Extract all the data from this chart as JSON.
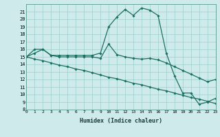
{
  "xlabel": "Humidex (Indice chaleur)",
  "bg_color": "#ceeaea",
  "grid_color": "#9ecece",
  "line_color": "#1a7060",
  "line1_x": [
    0,
    1,
    2,
    3,
    4,
    5,
    6,
    7,
    8,
    9,
    10,
    11,
    12,
    13,
    14,
    15,
    16,
    17,
    18,
    19,
    20,
    21,
    22,
    23
  ],
  "line1_y": [
    15,
    16,
    16,
    15.2,
    15.2,
    15.2,
    15.2,
    15.2,
    15.2,
    15.5,
    19.0,
    20.3,
    21.3,
    20.5,
    21.5,
    21.2,
    20.5,
    15.5,
    12.5,
    10.2,
    10.2,
    8.7,
    9.0,
    9.5
  ],
  "line2_x": [
    0,
    1,
    2,
    3,
    4,
    5,
    6,
    7,
    8,
    9,
    10,
    11,
    12,
    13,
    14,
    15,
    16,
    17,
    18,
    19,
    20,
    21,
    22,
    23
  ],
  "line2_y": [
    15.0,
    15.5,
    16.0,
    15.2,
    15.0,
    15.0,
    15.0,
    15.0,
    15.0,
    14.8,
    16.7,
    15.3,
    15.0,
    14.8,
    14.7,
    14.8,
    14.6,
    14.2,
    13.7,
    13.2,
    12.7,
    12.2,
    11.7,
    12.0
  ],
  "line3_x": [
    0,
    1,
    2,
    3,
    4,
    5,
    6,
    7,
    8,
    9,
    10,
    11,
    12,
    13,
    14,
    15,
    16,
    17,
    18,
    19,
    20,
    21,
    22,
    23
  ],
  "line3_y": [
    15.0,
    14.7,
    14.5,
    14.2,
    13.9,
    13.7,
    13.4,
    13.2,
    12.9,
    12.6,
    12.3,
    12.1,
    11.8,
    11.5,
    11.3,
    11.0,
    10.7,
    10.5,
    10.2,
    9.9,
    9.6,
    9.4,
    9.1,
    8.8
  ],
  "xlim": [
    0,
    23
  ],
  "ylim": [
    8,
    22
  ],
  "yticks": [
    8,
    9,
    10,
    11,
    12,
    13,
    14,
    15,
    16,
    17,
    18,
    19,
    20,
    21
  ],
  "xticks": [
    0,
    1,
    2,
    3,
    4,
    5,
    6,
    7,
    8,
    9,
    10,
    11,
    12,
    13,
    14,
    15,
    16,
    17,
    18,
    19,
    20,
    21,
    22,
    23
  ]
}
